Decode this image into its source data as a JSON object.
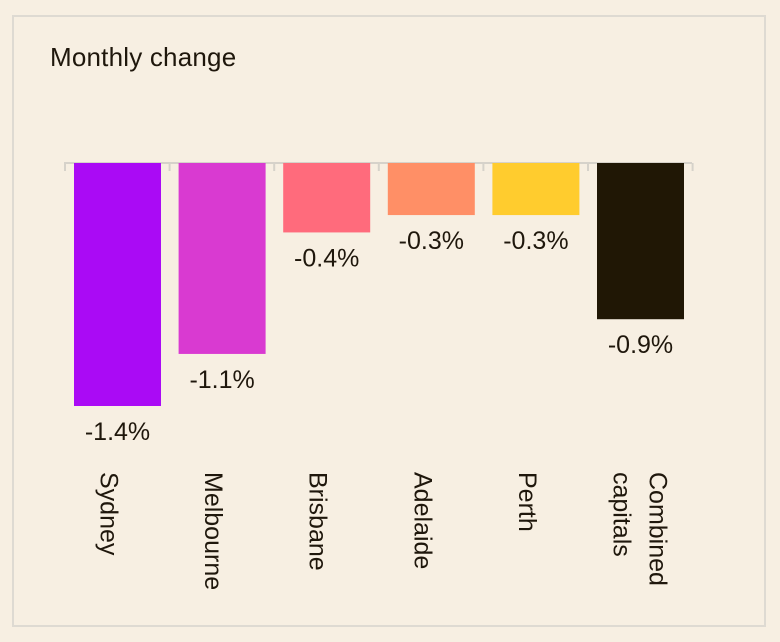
{
  "chart_data": {
    "type": "bar",
    "title": "Monthly change",
    "categories": [
      "Sydney",
      "Melbourne",
      "Brisbane",
      "Adelaide",
      "Perth",
      "Combined capitals"
    ],
    "values": [
      -1.4,
      -1.1,
      -0.4,
      -0.3,
      -0.3,
      -0.9
    ],
    "value_labels": [
      "-1.4%",
      "-1.1%",
      "-0.4%",
      "-0.3%",
      "-0.3%",
      "-0.9%"
    ],
    "colors": [
      "#aa0af5",
      "#d93ad1",
      "#ff6b7c",
      "#ff8f66",
      "#ffcc2e",
      "#201705"
    ],
    "ylim": [
      -1.4,
      0
    ],
    "unit": "%",
    "grid": false,
    "legend": "none"
  }
}
